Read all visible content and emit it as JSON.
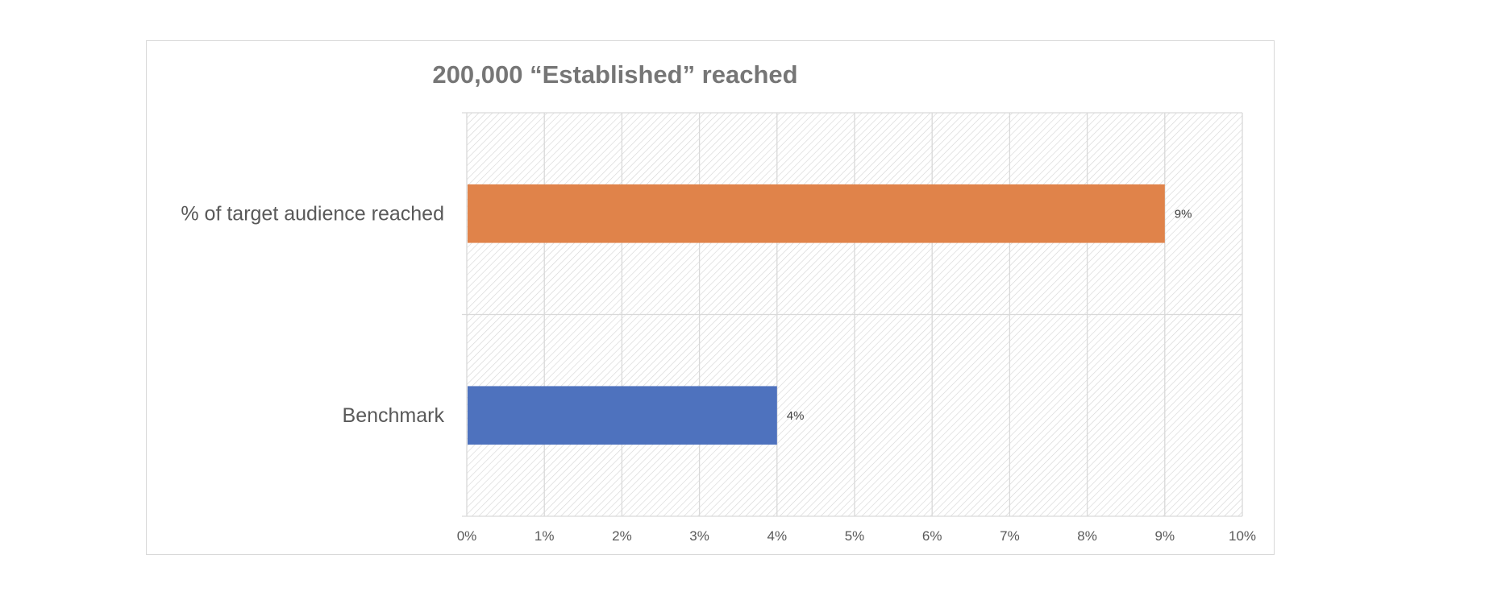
{
  "chart_data": {
    "type": "bar",
    "orientation": "horizontal",
    "title": "200,000 “Established” reached",
    "categories": [
      "% of target audience reached",
      "Benchmark"
    ],
    "values": [
      9,
      4
    ],
    "value_labels": [
      "9%",
      "4%"
    ],
    "bar_colors": [
      "#E0834A",
      "#4E72BE"
    ],
    "xlim": [
      0,
      10
    ],
    "x_ticks": [
      "0%",
      "1%",
      "2%",
      "3%",
      "4%",
      "5%",
      "6%",
      "7%",
      "8%",
      "9%",
      "10%"
    ],
    "grid": true,
    "plot_background": "hatched-light-gray",
    "legend": "none",
    "xlabel": "",
    "ylabel": ""
  }
}
